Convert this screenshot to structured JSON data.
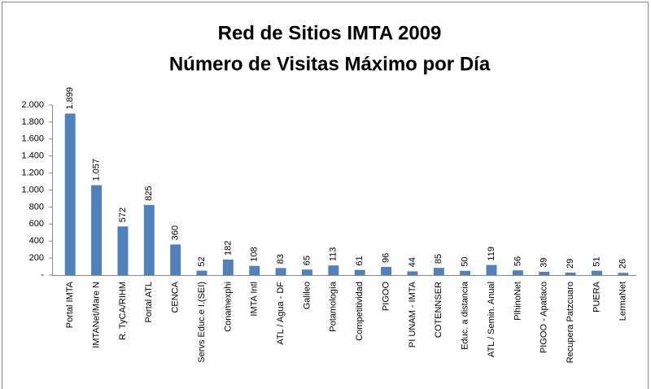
{
  "chart_data": {
    "type": "bar",
    "title": "Red de Sitios IMTA 2009",
    "subtitle": "Número de Visitas Máximo por Día",
    "categories": [
      "Portal IMTA",
      "IMTANet/Mare N",
      "R. TyCA/RIHM",
      "Portal ATL",
      "CENCA",
      "Servs Educ.e I.(SEI)",
      "Conamexphi",
      "IMTA Intl",
      "ATL / Agua - DF",
      "Galileo",
      "Potamología",
      "Competitividad",
      "PIGOO",
      "PI UNAM - IMTA",
      "COTENNSER",
      "Educ. a distancia",
      "ATL / Semin. Anual",
      "PlhinoNet",
      "PIGOO - Apatlaco",
      "Recupera Patzcuaro",
      "PUERA",
      "LermaNet"
    ],
    "values": [
      1899,
      1057,
      572,
      825,
      360,
      52,
      182,
      108,
      83,
      65,
      113,
      61,
      96,
      44,
      85,
      50,
      119,
      56,
      39,
      29,
      51,
      26
    ],
    "value_labels": [
      "1.899",
      "1.057",
      "572",
      "825",
      "360",
      "52",
      "182",
      "108",
      "83",
      "65",
      "113",
      "61",
      "96",
      "44",
      "85",
      "50",
      "119",
      "56",
      "39",
      "29",
      "51",
      "26"
    ],
    "color": "#4f81bd",
    "ylim": [
      0,
      2000
    ],
    "yticks": [
      {
        "value": 0,
        "label": "-"
      },
      200,
      400,
      600,
      800,
      {
        "value": 1000,
        "label": "1.000"
      },
      {
        "value": 1200,
        "label": "1.200"
      },
      {
        "value": 1400,
        "label": "1.400"
      },
      {
        "value": 1600,
        "label": "1.600"
      },
      {
        "value": 1800,
        "label": "1.800"
      },
      {
        "value": 2000,
        "label": "2.000"
      }
    ],
    "grid": false
  }
}
